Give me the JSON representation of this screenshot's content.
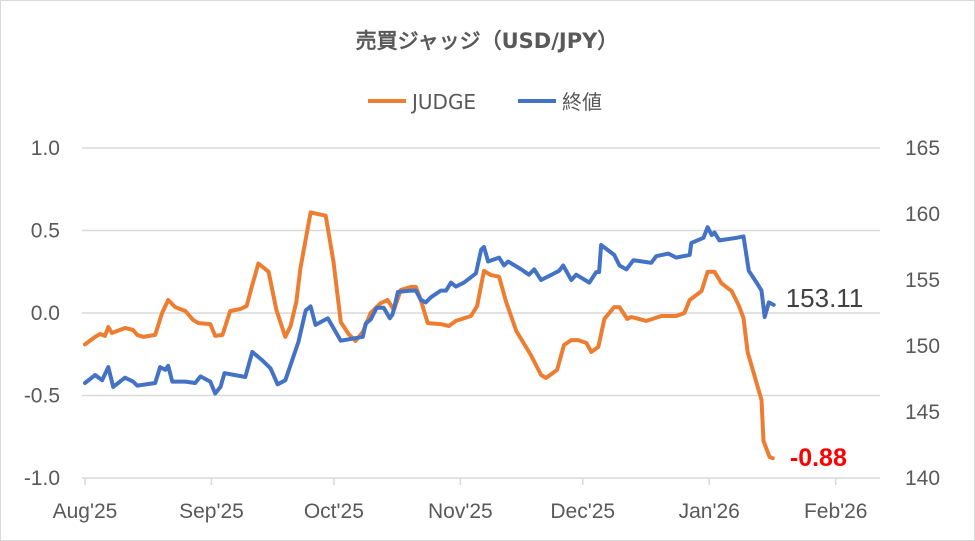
{
  "chart_data": {
    "type": "line",
    "title": "売買ジャッジ（USD/JPY）",
    "x_unit": "days since 2025-08-01",
    "legend": {
      "placement": "top",
      "entries": [
        "JUDGE",
        "終値"
      ]
    },
    "x_ticks": [
      {
        "label": "Aug'25",
        "day": 0
      },
      {
        "label": "Sep'25",
        "day": 31
      },
      {
        "label": "Oct'25",
        "day": 61
      },
      {
        "label": "Nov'25",
        "day": 92
      },
      {
        "label": "Dec'25",
        "day": 122
      },
      {
        "label": "Jan'26",
        "day": 153
      },
      {
        "label": "Feb'26",
        "day": 184
      }
    ],
    "xlim": [
      0,
      196
    ],
    "left_axis": {
      "ylim": [
        -1.0,
        1.0
      ],
      "ticks": [
        "1.0",
        "0.5",
        "0.0",
        "-0.5",
        "-1.0"
      ],
      "tick_values": [
        1.0,
        0.5,
        0.0,
        -0.5,
        -1.0
      ]
    },
    "right_axis": {
      "ylim": [
        140,
        165
      ],
      "ticks": [
        "165",
        "160",
        "155",
        "150",
        "145",
        "140"
      ],
      "tick_values": [
        165,
        160,
        155,
        150,
        145,
        140
      ]
    },
    "grid": true,
    "series": [
      {
        "name": "JUDGE",
        "axis": "left",
        "color": "#ED7D31",
        "end_label": "-0.88",
        "end_label_color": "#FF0000",
        "points": [
          [
            0,
            -0.19
          ],
          [
            2.5,
            -0.145
          ],
          [
            3.7,
            -0.127
          ],
          [
            4.9,
            -0.139
          ],
          [
            5.7,
            -0.085
          ],
          [
            6.6,
            -0.121
          ],
          [
            9.8,
            -0.091
          ],
          [
            11.8,
            -0.103
          ],
          [
            12.8,
            -0.133
          ],
          [
            14.3,
            -0.145
          ],
          [
            17.2,
            -0.133
          ],
          [
            18.9,
            0
          ],
          [
            20.4,
            0.079
          ],
          [
            22.1,
            0.036
          ],
          [
            24.6,
            0.012
          ],
          [
            26.5,
            -0.042
          ],
          [
            27.8,
            -0.061
          ],
          [
            30.7,
            -0.067
          ],
          [
            31.9,
            -0.139
          ],
          [
            33.7,
            -0.133
          ],
          [
            35.6,
            0.012
          ],
          [
            38.1,
            0.024
          ],
          [
            39.6,
            0.042
          ],
          [
            41.0,
            0.17
          ],
          [
            42.5,
            0.3
          ],
          [
            45.0,
            0.25
          ],
          [
            46.9,
            0.018
          ],
          [
            49.1,
            -0.145
          ],
          [
            50.4,
            -0.079
          ],
          [
            51.8,
            0.067
          ],
          [
            52.8,
            0.27
          ],
          [
            55.3,
            0.61
          ],
          [
            59.0,
            0.59
          ],
          [
            60.9,
            0.31
          ],
          [
            62.7,
            -0.055
          ],
          [
            64.6,
            -0.127
          ],
          [
            66.3,
            -0.17
          ],
          [
            68.1,
            -0.115
          ],
          [
            70.0,
            0
          ],
          [
            72.5,
            0.06
          ],
          [
            74.2,
            0.079
          ],
          [
            75.7,
            0.018
          ],
          [
            77.4,
            0.14
          ],
          [
            79.9,
            0.158
          ],
          [
            81.1,
            0.158
          ],
          [
            82.3,
            0.079
          ],
          [
            84.0,
            -0.061
          ],
          [
            87.2,
            -0.067
          ],
          [
            89.2,
            -0.079
          ],
          [
            90.9,
            -0.048
          ],
          [
            94.6,
            -0.018
          ],
          [
            96.1,
            0.042
          ],
          [
            97.1,
            0.17
          ],
          [
            97.8,
            0.255
          ],
          [
            99.5,
            0.23
          ],
          [
            101.5,
            0.22
          ],
          [
            103.2,
            0.067
          ],
          [
            105.7,
            -0.109
          ],
          [
            109.3,
            -0.255
          ],
          [
            111.8,
            -0.376
          ],
          [
            113.0,
            -0.394
          ],
          [
            115.7,
            -0.345
          ],
          [
            117.4,
            -0.194
          ],
          [
            119.2,
            -0.164
          ],
          [
            120.9,
            -0.164
          ],
          [
            122.9,
            -0.182
          ],
          [
            124.1,
            -0.236
          ],
          [
            125.8,
            -0.206
          ],
          [
            127.3,
            -0.036
          ],
          [
            129.7,
            0.036
          ],
          [
            131.0,
            0.036
          ],
          [
            132.9,
            -0.036
          ],
          [
            133.9,
            -0.024
          ],
          [
            137.6,
            -0.048
          ],
          [
            141.3,
            -0.018
          ],
          [
            144.9,
            -0.018
          ],
          [
            146.9,
            0
          ],
          [
            148.2,
            0.079
          ],
          [
            151.1,
            0.133
          ],
          [
            152.6,
            0.25
          ],
          [
            154.3,
            0.25
          ],
          [
            156.0,
            0.18
          ],
          [
            158.5,
            0.133
          ],
          [
            160.2,
            0.048
          ],
          [
            161.4,
            -0.03
          ],
          [
            162.4,
            -0.236
          ],
          [
            165.1,
            -0.467
          ],
          [
            165.8,
            -0.527
          ],
          [
            166.3,
            -0.776
          ],
          [
            167.8,
            -0.873
          ],
          [
            168.6,
            -0.88
          ]
        ]
      },
      {
        "name": "終値",
        "axis": "right",
        "color": "#4472C4",
        "end_label": "153.11",
        "end_label_color": "#404040",
        "points": [
          [
            0,
            147.2
          ],
          [
            2.5,
            147.8
          ],
          [
            4.2,
            147.4
          ],
          [
            5.7,
            148.4
          ],
          [
            6.9,
            146.9
          ],
          [
            9.8,
            147.6
          ],
          [
            11.8,
            147.3
          ],
          [
            12.8,
            147.0
          ],
          [
            17.2,
            147.2
          ],
          [
            18.4,
            148.4
          ],
          [
            19.7,
            148.2
          ],
          [
            20.4,
            148.5
          ],
          [
            21.4,
            147.3
          ],
          [
            24.6,
            147.3
          ],
          [
            27.0,
            147.2
          ],
          [
            28.3,
            147.7
          ],
          [
            30.7,
            147.3
          ],
          [
            31.9,
            146.4
          ],
          [
            33.2,
            146.9
          ],
          [
            34.2,
            147.95
          ],
          [
            39.3,
            147.65
          ],
          [
            41.0,
            149.55
          ],
          [
            43.5,
            148.9
          ],
          [
            45.5,
            148.3
          ],
          [
            47.2,
            147.1
          ],
          [
            49.1,
            147.4
          ],
          [
            52.3,
            150.3
          ],
          [
            54.1,
            152.7
          ],
          [
            55.3,
            153.0
          ],
          [
            56.5,
            151.6
          ],
          [
            59.5,
            152.1
          ],
          [
            62.7,
            150.4
          ],
          [
            66.3,
            150.6
          ],
          [
            68.1,
            150.7
          ],
          [
            68.8,
            151.7
          ],
          [
            70.0,
            152.0
          ],
          [
            71.5,
            152.9
          ],
          [
            73.2,
            152.9
          ],
          [
            74.7,
            152.1
          ],
          [
            75.4,
            152.4
          ],
          [
            76.7,
            154.1
          ],
          [
            79.9,
            154.2
          ],
          [
            81.1,
            154.2
          ],
          [
            82.3,
            153.5
          ],
          [
            83.5,
            153.3
          ],
          [
            84.8,
            153.7
          ],
          [
            87.2,
            154.2
          ],
          [
            88.5,
            154.2
          ],
          [
            89.7,
            154.8
          ],
          [
            90.9,
            154.5
          ],
          [
            92.9,
            154.8
          ],
          [
            95.8,
            155.5
          ],
          [
            97.1,
            157.3
          ],
          [
            97.8,
            157.5
          ],
          [
            98.8,
            156.4
          ],
          [
            101.5,
            156.7
          ],
          [
            102.7,
            156.1
          ],
          [
            103.7,
            156.4
          ],
          [
            106.9,
            155.8
          ],
          [
            108.8,
            155.4
          ],
          [
            110.1,
            155.8
          ],
          [
            111.8,
            155.0
          ],
          [
            115.0,
            155.5
          ],
          [
            116.2,
            155.7
          ],
          [
            117.2,
            156.1
          ],
          [
            119.2,
            155.0
          ],
          [
            120.4,
            155.4
          ],
          [
            123.6,
            154.8
          ],
          [
            125.3,
            155.6
          ],
          [
            126.0,
            155.6
          ],
          [
            126.5,
            157.65
          ],
          [
            129.7,
            156.9
          ],
          [
            131.0,
            156.1
          ],
          [
            132.7,
            155.8
          ],
          [
            134.4,
            156.5
          ],
          [
            138.8,
            156.3
          ],
          [
            140.0,
            156.8
          ],
          [
            143.0,
            157.0
          ],
          [
            144.9,
            156.7
          ],
          [
            148.2,
            156.9
          ],
          [
            148.6,
            157.8
          ],
          [
            151.6,
            158.2
          ],
          [
            152.6,
            159.0
          ],
          [
            153.6,
            158.4
          ],
          [
            154.3,
            158.6
          ],
          [
            155.5,
            158.0
          ],
          [
            159.7,
            158.2
          ],
          [
            161.4,
            158.3
          ],
          [
            162.7,
            155.7
          ],
          [
            164.6,
            154.8
          ],
          [
            165.8,
            154.2
          ],
          [
            166.6,
            152.2
          ],
          [
            167.6,
            153.3
          ],
          [
            168.8,
            153.11
          ]
        ]
      }
    ],
    "negative_tick_color": "#FF0000",
    "tick_color": "#595959"
  }
}
